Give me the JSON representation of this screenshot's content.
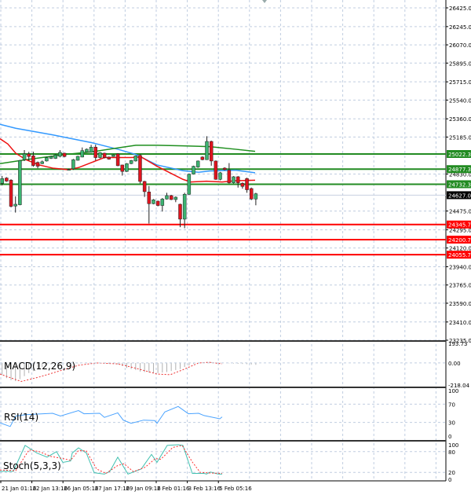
{
  "chart_data": {
    "type": "candlestick",
    "instrument_axis": {
      "price_range": [
        23235,
        26425
      ],
      "tick_labels": [
        "26425.0",
        "26245.0",
        "26070.0",
        "25895.0",
        "25715.0",
        "25540.0",
        "25360.0",
        "25185.0",
        "24830.0",
        "24475.0",
        "24295.0",
        "24120.0",
        "23940.0",
        "23765.0",
        "23590.0",
        "23410.0",
        "23235.0"
      ]
    },
    "current_price": {
      "value": 24627,
      "label": "24627.0",
      "color": "#000000"
    },
    "resistance_levels": [
      {
        "value": 25022.3,
        "label": "25022.3"
      },
      {
        "value": 24877.3,
        "label": "24877.3"
      },
      {
        "value": 24732.3,
        "label": "24732.3"
      }
    ],
    "support_levels": [
      {
        "value": 24345.7,
        "label": "24345.7"
      },
      {
        "value": 24200.7,
        "label": "24200.7"
      },
      {
        "value": 24055.7,
        "label": "24055.7"
      }
    ],
    "colors": {
      "bull": "#3cb371",
      "bear": "#e0141e",
      "resistance": "#228b22",
      "support": "#ff0000",
      "ma_blue": "#3399ff",
      "ma_red": "#ee1111",
      "ma_green": "#1f8f1f",
      "grid": "#c0cde0",
      "rsi": "#4aa3ff",
      "stoch_k": "#40c0b0",
      "stoch_d": "#ff3030"
    },
    "candles": [
      [
        24741,
        24787,
        24812,
        24721
      ],
      [
        24792,
        24762,
        24800,
        24755
      ],
      [
        24772,
        24520,
        24780,
        24510
      ],
      [
        24523,
        24540,
        24616,
        24460
      ],
      [
        24535,
        24960,
        24965,
        24530
      ],
      [
        24968,
        25023,
        25060,
        24955
      ],
      [
        25023,
        24998,
        25043,
        24960
      ],
      [
        25005,
        24912,
        25045,
        24900
      ],
      [
        24942,
        24905,
        24950,
        24885
      ],
      [
        24930,
        24948,
        24960,
        24925
      ],
      [
        24955,
        24988,
        24995,
        24950
      ],
      [
        24980,
        24998,
        25005,
        24975
      ],
      [
        24980,
        25013,
        25020,
        24975
      ],
      [
        25000,
        25038,
        25060,
        24990
      ],
      [
        25030,
        24998,
        25035,
        24990
      ],
      [
        24870,
        24874,
        24880,
        24865
      ],
      [
        24880,
        24968,
        24975,
        24870
      ],
      [
        24962,
        25000,
        25005,
        24958
      ],
      [
        24993,
        25055,
        25085,
        24990
      ],
      [
        25043,
        25068,
        25075,
        25040
      ],
      [
        25038,
        25088,
        25110,
        25035
      ],
      [
        25088,
        24988,
        25112,
        24960
      ],
      [
        24988,
        25035,
        25040,
        24980
      ],
      [
        25030,
        24988,
        25035,
        24980
      ],
      [
        24993,
        24973,
        24998,
        24968
      ],
      [
        24998,
        25013,
        25018,
        24995
      ],
      [
        25023,
        24910,
        25030,
        24905
      ],
      [
        24917,
        24855,
        24920,
        24815
      ],
      [
        24855,
        24930,
        24935,
        24850
      ],
      [
        24930,
        24960,
        24965,
        24925
      ],
      [
        24955,
        25005,
        25010,
        24950
      ],
      [
        25010,
        24759,
        25020,
        24740
      ],
      [
        24759,
        24661,
        24765,
        24610
      ],
      [
        24658,
        24545,
        24715,
        24355
      ],
      [
        24545,
        24583,
        24590,
        24540
      ],
      [
        24570,
        24528,
        24575,
        24520
      ],
      [
        24528,
        24590,
        24600,
        24470
      ],
      [
        24590,
        24623,
        24650,
        24585
      ],
      [
        24623,
        24585,
        24630,
        24580
      ],
      [
        24585,
        24608,
        24615,
        24560
      ],
      [
        24540,
        24397,
        24545,
        24320
      ],
      [
        24397,
        24636,
        24650,
        24310
      ],
      [
        24636,
        24829,
        24835,
        24630
      ],
      [
        24829,
        24905,
        24910,
        24825
      ],
      [
        24897,
        24955,
        24960,
        24890
      ],
      [
        24993,
        24968,
        25000,
        24962
      ],
      [
        24968,
        25143,
        25193,
        24965
      ],
      [
        25143,
        24955,
        25150,
        24910
      ],
      [
        24955,
        24779,
        24960,
        24775
      ],
      [
        24779,
        24842,
        24850,
        24770
      ],
      [
        24887,
        24872,
        24895,
        24865
      ],
      [
        24867,
        24746,
        24935,
        24740
      ],
      [
        24746,
        24804,
        24810,
        24740
      ],
      [
        24804,
        24746,
        24810,
        24700
      ],
      [
        24741,
        24711,
        24750,
        24690
      ],
      [
        24787,
        24679,
        24795,
        24650
      ],
      [
        24691,
        24590,
        24700,
        24580
      ],
      [
        24590,
        24641,
        24650,
        24530
      ]
    ],
    "ma_blue": [
      [
        0,
        25307
      ],
      [
        20,
        25269
      ],
      [
        67,
        25206
      ],
      [
        117,
        25131
      ],
      [
        150,
        25068
      ],
      [
        173,
        25018
      ],
      [
        200,
        24917
      ],
      [
        233,
        24862
      ],
      [
        253,
        24847
      ],
      [
        267,
        24859
      ],
      [
        300,
        24867
      ],
      [
        325,
        24842
      ]
    ],
    "ma_red": [
      [
        0,
        25169
      ],
      [
        10,
        25118
      ],
      [
        20,
        25030
      ],
      [
        33,
        24968
      ],
      [
        50,
        24917
      ],
      [
        67,
        24887
      ],
      [
        87,
        24872
      ],
      [
        100,
        24892
      ],
      [
        117,
        24942
      ],
      [
        133,
        24988
      ],
      [
        167,
        24988
      ],
      [
        180,
        24993
      ],
      [
        200,
        24905
      ],
      [
        233,
        24779
      ],
      [
        243,
        24754
      ],
      [
        263,
        24761
      ],
      [
        283,
        24754
      ],
      [
        300,
        24766
      ],
      [
        325,
        24771
      ]
    ],
    "ma_green": [
      [
        0,
        24930
      ],
      [
        33,
        24968
      ],
      [
        83,
        25018
      ],
      [
        117,
        25043
      ],
      [
        150,
        25081
      ],
      [
        173,
        25106
      ],
      [
        200,
        25106
      ],
      [
        233,
        25101
      ],
      [
        267,
        25093
      ],
      [
        300,
        25068
      ],
      [
        325,
        25048
      ]
    ],
    "time_labels": [
      "21 Jan 01:16",
      "22 Jan 13:16",
      "26 Jan 05:16",
      "27 Jan 17:16",
      "29 Jan 09:16",
      "2 Feb 01:16",
      "3 Feb 13:16",
      "5 Feb 05:16"
    ],
    "macd": {
      "title": "MACD(12,26,9)",
      "range": [
        -218.04,
        193.73
      ],
      "tick_labels": [
        "193.73",
        "0.00",
        "-218.04"
      ],
      "signal": [
        [
          0,
          -110
        ],
        [
          27,
          -183
        ],
        [
          50,
          -139
        ],
        [
          100,
          -23
        ],
        [
          123,
          0
        ],
        [
          150,
          -9
        ],
        [
          173,
          -52
        ],
        [
          200,
          -110
        ],
        [
          217,
          -116
        ],
        [
          233,
          -67
        ],
        [
          253,
          0
        ],
        [
          267,
          6
        ],
        [
          283,
          -9
        ]
      ],
      "histogram": [
        -120,
        -150,
        -170,
        -180,
        -160,
        -130,
        -100,
        -80,
        -60,
        -40,
        -25,
        -15,
        -10,
        -5,
        -3,
        -2,
        -5,
        -3,
        0,
        0,
        0,
        -2,
        -3,
        -5,
        -8,
        -10,
        -15,
        -30,
        -50,
        -60,
        -70,
        -85,
        -90,
        -95,
        -100,
        -100,
        -95,
        -90,
        -80,
        -70,
        -60,
        -40,
        -25,
        -10,
        0,
        5,
        10,
        8,
        5,
        3,
        0,
        -3,
        -5,
        -8,
        -10,
        -12,
        -15,
        -18
      ]
    },
    "rsi": {
      "title": "RSI(14)",
      "range": [
        0,
        100
      ],
      "tick_labels": [
        "100",
        "70",
        "30",
        "0"
      ],
      "values": [
        [
          0,
          29
        ],
        [
          13,
          21
        ],
        [
          20,
          44
        ],
        [
          33,
          47
        ],
        [
          67,
          50
        ],
        [
          77,
          44
        ],
        [
          100,
          56
        ],
        [
          107,
          49
        ],
        [
          127,
          50
        ],
        [
          133,
          41
        ],
        [
          150,
          51
        ],
        [
          157,
          35
        ],
        [
          167,
          28
        ],
        [
          183,
          35
        ],
        [
          197,
          34
        ],
        [
          200,
          28
        ],
        [
          210,
          53
        ],
        [
          227,
          65
        ],
        [
          240,
          49
        ],
        [
          253,
          50
        ],
        [
          260,
          45
        ],
        [
          280,
          38
        ],
        [
          283,
          42
        ]
      ]
    },
    "stoch": {
      "title": "Stoch(5,3,3)",
      "range": [
        0,
        100
      ],
      "tick_labels": [
        "100",
        "80",
        "20",
        "0"
      ],
      "k": [
        [
          0,
          23
        ],
        [
          17,
          23
        ],
        [
          32,
          98
        ],
        [
          47,
          76
        ],
        [
          60,
          64
        ],
        [
          72,
          80
        ],
        [
          80,
          49
        ],
        [
          90,
          53
        ],
        [
          92,
          76
        ],
        [
          100,
          91
        ],
        [
          110,
          76
        ],
        [
          120,
          19
        ],
        [
          133,
          15
        ],
        [
          140,
          23
        ],
        [
          150,
          64
        ],
        [
          163,
          15
        ],
        [
          180,
          30
        ],
        [
          193,
          72
        ],
        [
          200,
          49
        ],
        [
          213,
          98
        ],
        [
          227,
          100
        ],
        [
          233,
          98
        ],
        [
          245,
          17
        ],
        [
          260,
          17
        ],
        [
          263,
          15
        ],
        [
          268,
          21
        ],
        [
          278,
          15
        ],
        [
          283,
          15
        ]
      ],
      "d": [
        [
          0,
          27
        ],
        [
          20,
          25
        ],
        [
          37,
          85
        ],
        [
          50,
          80
        ],
        [
          65,
          66
        ],
        [
          80,
          60
        ],
        [
          90,
          55
        ],
        [
          100,
          83
        ],
        [
          110,
          82
        ],
        [
          123,
          30
        ],
        [
          135,
          17
        ],
        [
          150,
          40
        ],
        [
          158,
          45
        ],
        [
          170,
          22
        ],
        [
          185,
          35
        ],
        [
          198,
          60
        ],
        [
          205,
          58
        ],
        [
          220,
          92
        ],
        [
          232,
          98
        ],
        [
          245,
          50
        ],
        [
          255,
          20
        ],
        [
          270,
          18
        ],
        [
          283,
          17
        ]
      ]
    }
  }
}
